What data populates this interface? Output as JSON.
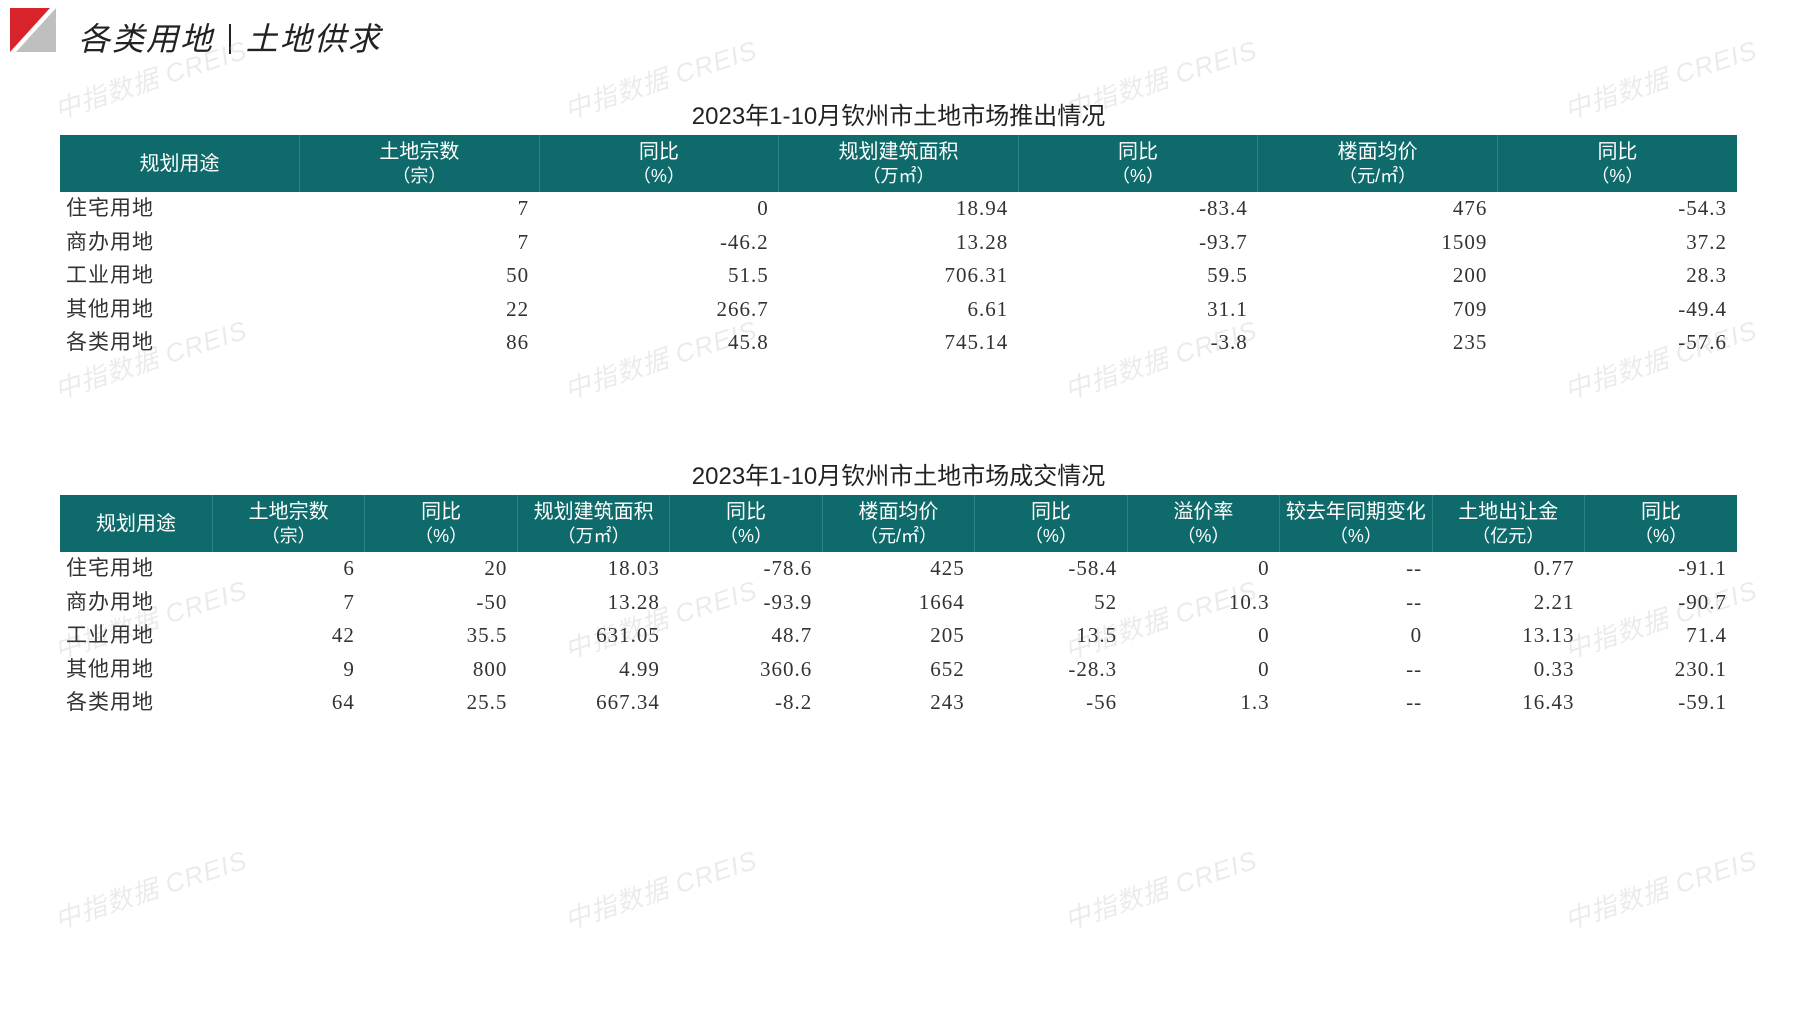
{
  "colors": {
    "header_bg": "#0f6b6b",
    "header_text": "#ffffff",
    "row_text": "#333333",
    "watermark": "#dcdcdc",
    "page_bg": "#ffffff",
    "logo_red": "#d8232a",
    "logo_grey": "#bfbfbf"
  },
  "typography": {
    "title_fontsize": 32,
    "caption_fontsize": 24,
    "header_fontsize": 20,
    "cell_fontsize": 21,
    "title_italic": true
  },
  "title": {
    "left": "各类用地",
    "right": "土地供求"
  },
  "watermark_text": "中指数据 CREIS",
  "table1": {
    "type": "table",
    "caption": "2023年1-10月钦州市土地市场推出情况",
    "columns": [
      {
        "main": "规划用途",
        "sub": ""
      },
      {
        "main": "土地宗数",
        "sub": "（宗）"
      },
      {
        "main": "同比",
        "sub": "（%）"
      },
      {
        "main": "规划建筑面积",
        "sub": "（万㎡）"
      },
      {
        "main": "同比",
        "sub": "（%）"
      },
      {
        "main": "楼面均价",
        "sub": "（元/㎡）"
      },
      {
        "main": "同比",
        "sub": "（%）"
      }
    ],
    "rows": [
      [
        "住宅用地",
        "7",
        "0",
        "18.94",
        "-83.4",
        "476",
        "-54.3"
      ],
      [
        "商办用地",
        "7",
        "-46.2",
        "13.28",
        "-93.7",
        "1509",
        "37.2"
      ],
      [
        "工业用地",
        "50",
        "51.5",
        "706.31",
        "59.5",
        "200",
        "28.3"
      ],
      [
        "其他用地",
        "22",
        "266.7",
        "6.61",
        "31.1",
        "709",
        "-49.4"
      ],
      [
        "各类用地",
        "86",
        "45.8",
        "745.14",
        "-3.8",
        "235",
        "-57.6"
      ]
    ]
  },
  "table2": {
    "type": "table",
    "caption": "2023年1-10月钦州市土地市场成交情况",
    "columns": [
      {
        "main": "规划用途",
        "sub": ""
      },
      {
        "main": "土地宗数",
        "sub": "（宗）"
      },
      {
        "main": "同比",
        "sub": "（%）"
      },
      {
        "main": "规划建筑面积",
        "sub": "（万㎡）"
      },
      {
        "main": "同比",
        "sub": "（%）"
      },
      {
        "main": "楼面均价",
        "sub": "（元/㎡）"
      },
      {
        "main": "同比",
        "sub": "（%）"
      },
      {
        "main": "溢价率",
        "sub": "（%）"
      },
      {
        "main": "较去年同期变化",
        "sub": "（%）"
      },
      {
        "main": "土地出让金",
        "sub": "（亿元）"
      },
      {
        "main": "同比",
        "sub": "（%）"
      }
    ],
    "rows": [
      [
        "住宅用地",
        "6",
        "20",
        "18.03",
        "-78.6",
        "425",
        "-58.4",
        "0",
        "--",
        "0.77",
        "-91.1"
      ],
      [
        "商办用地",
        "7",
        "-50",
        "13.28",
        "-93.9",
        "1664",
        "52",
        "10.3",
        "--",
        "2.21",
        "-90.7"
      ],
      [
        "工业用地",
        "42",
        "35.5",
        "631.05",
        "48.7",
        "205",
        "13.5",
        "0",
        "0",
        "13.13",
        "71.4"
      ],
      [
        "其他用地",
        "9",
        "800",
        "4.99",
        "360.6",
        "652",
        "-28.3",
        "0",
        "--",
        "0.33",
        "230.1"
      ],
      [
        "各类用地",
        "64",
        "25.5",
        "667.34",
        "-8.2",
        "243",
        "-56",
        "1.3",
        "--",
        "16.43",
        "-59.1"
      ]
    ]
  }
}
